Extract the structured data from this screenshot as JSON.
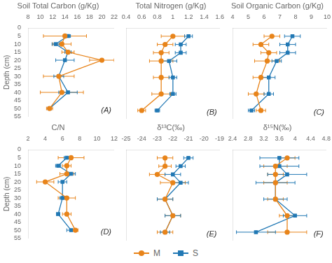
{
  "chart_data": [
    {
      "type": "line",
      "title": "Soil Total Carbon (g/Kg)",
      "ylabel": "Depth (cm)",
      "annotations": [
        "(A)"
      ],
      "y": [
        5,
        10,
        15,
        20,
        30,
        40,
        50
      ],
      "series": [
        {
          "name": "M",
          "color": "#E8841A",
          "marker": "o",
          "x": [
            14.0,
            13.5,
            14.5,
            20.0,
            13.0,
            13.5,
            11.5
          ],
          "xerr": [
            3.5,
            1.5,
            1.0,
            2.0,
            2.5,
            3.5,
            0.5
          ]
        },
        {
          "name": "S",
          "color": "#2178B4",
          "marker": "s",
          "x": [
            14.5,
            12.5,
            14.5,
            14.0,
            13.0,
            14.5,
            11.5
          ],
          "xerr": [
            0.4,
            0.6,
            0.5,
            1.5,
            0.8,
            1.5,
            0.3
          ]
        }
      ],
      "xlim": [
        8,
        22
      ],
      "xticks": [
        8,
        10,
        12,
        14,
        16,
        18,
        20,
        22
      ],
      "ylim": [
        55,
        0
      ],
      "yticks": [
        0,
        5,
        10,
        15,
        20,
        25,
        30,
        35,
        40,
        45,
        50,
        55
      ],
      "grid": false,
      "legend": "bottom"
    },
    {
      "type": "line",
      "title": "Total Nitrogen (g/Kg)",
      "annotations": [
        "(B)"
      ],
      "y": [
        5,
        10,
        15,
        20,
        30,
        40,
        50
      ],
      "series": [
        {
          "name": "M",
          "color": "#E8841A",
          "marker": "o",
          "x": [
            1.0,
            0.9,
            0.85,
            0.85,
            0.85,
            0.85,
            0.6
          ],
          "xerr": [
            0.15,
            0.1,
            0.1,
            0.15,
            0.1,
            0.12,
            0.05
          ]
        },
        {
          "name": "S",
          "color": "#2178B4",
          "marker": "s",
          "x": [
            1.2,
            1.1,
            1.1,
            0.95,
            1.0,
            1.0,
            0.8
          ],
          "xerr": [
            0.05,
            0.07,
            0.07,
            0.1,
            0.05,
            0.04,
            0.03
          ]
        }
      ],
      "xlim": [
        0.4,
        1.6
      ],
      "xticks": [
        0.4,
        0.6,
        0.8,
        1,
        1.2,
        1.4,
        1.6
      ],
      "ylim": [
        55,
        0
      ],
      "yticks": [
        0,
        5,
        10,
        15,
        20,
        25,
        30,
        35,
        40,
        45,
        50,
        55
      ],
      "tick_labels": "x",
      "grid": false,
      "legend": "bottom"
    },
    {
      "type": "line",
      "title": "Soil Organic Carbon (g/Kg)",
      "annotations": [
        "(C)"
      ],
      "y": [
        5,
        10,
        15,
        20,
        30,
        40,
        50
      ],
      "series": [
        {
          "name": "M",
          "color": "#E8841A",
          "marker": "o",
          "x": [
            6.5,
            5.8,
            6.3,
            6.2,
            5.8,
            5.5,
            5.8
          ],
          "xerr": [
            0.5,
            0.5,
            0.5,
            0.8,
            0.5,
            0.5,
            0.3
          ]
        },
        {
          "name": "S",
          "color": "#2178B4",
          "marker": "s",
          "x": [
            7.8,
            7.5,
            7.5,
            6.8,
            6.3,
            6.3,
            5.2
          ],
          "xerr": [
            0.5,
            0.5,
            0.5,
            0.3,
            0.4,
            0.3,
            0.2
          ]
        }
      ],
      "xlim": [
        4,
        10
      ],
      "xticks": [
        4,
        5,
        6,
        7,
        8,
        9,
        10
      ],
      "ylim": [
        55,
        0
      ],
      "yticks": [
        0,
        5,
        10,
        15,
        20,
        25,
        30,
        35,
        40,
        45,
        50,
        55
      ],
      "tick_labels": "x",
      "grid": false,
      "legend": "bottom"
    },
    {
      "type": "line",
      "title": "C/N",
      "ylabel": "Depth (cm)",
      "annotations": [
        "(D)"
      ],
      "y": [
        5,
        10,
        15,
        20,
        30,
        40,
        50
      ],
      "series": [
        {
          "name": "M",
          "color": "#E8841A",
          "marker": "o",
          "x": [
            7.0,
            6.5,
            6.5,
            4.0,
            6.5,
            6.5,
            7.5
          ],
          "xerr": [
            1.5,
            0.5,
            0.8,
            1.0,
            1.0,
            0.5,
            0.3
          ]
        },
        {
          "name": "S",
          "color": "#2178B4",
          "marker": "s",
          "x": [
            6.5,
            5.5,
            7.0,
            6.0,
            6.0,
            5.5,
            7.0
          ],
          "xerr": [
            0.3,
            0.3,
            0.5,
            0.5,
            0.3,
            0.2,
            0.5
          ]
        }
      ],
      "xlim": [
        2,
        12
      ],
      "xticks": [
        2,
        4,
        6,
        8,
        10,
        12
      ],
      "ylim": [
        55,
        0
      ],
      "yticks": [
        0,
        5,
        10,
        15,
        20,
        25,
        30,
        35,
        40,
        45,
        50,
        55
      ],
      "grid": false,
      "legend": "bottom"
    },
    {
      "type": "line",
      "title": "δ¹³C(‰)",
      "annotations": [
        "(E)"
      ],
      "y": [
        5,
        10,
        15,
        20,
        30,
        40,
        50
      ],
      "series": [
        {
          "name": "M",
          "color": "#E8841A",
          "marker": "o",
          "x": [
            -22.5,
            -22.5,
            -23.0,
            -22.0,
            -22.5,
            -22.0,
            -22.5
          ],
          "xerr": [
            0.5,
            0.4,
            0.5,
            0.8,
            0.5,
            0.5,
            0.5
          ]
        },
        {
          "name": "S",
          "color": "#2178B4",
          "marker": "s",
          "x": [
            -21.0,
            -21.5,
            -22.0,
            -21.5,
            -22.5,
            -22.0,
            -22.5
          ],
          "xerr": [
            0.3,
            0.3,
            0.5,
            0.5,
            0.5,
            0.5,
            0.3
          ]
        }
      ],
      "xlim": [
        -25,
        -19
      ],
      "xticks": [
        -25,
        -24,
        -23,
        -22,
        -21,
        -20,
        -19
      ],
      "ylim": [
        55,
        0
      ],
      "yticks": [
        0,
        5,
        10,
        15,
        20,
        25,
        30,
        35,
        40,
        45,
        50,
        55
      ],
      "tick_labels": "x",
      "grid": false,
      "legend": "bottom"
    },
    {
      "type": "line",
      "title": "δ¹⁵N(‰)",
      "annotations": [
        "(F)"
      ],
      "y": [
        5,
        10,
        15,
        20,
        30,
        40,
        50
      ],
      "series": [
        {
          "name": "M",
          "color": "#E8841A",
          "marker": "o",
          "x": [
            3.8,
            3.5,
            3.5,
            3.5,
            3.5,
            3.8,
            3.8
          ],
          "xerr": [
            0.2,
            0.3,
            0.2,
            0.3,
            0.2,
            0.2,
            0.5
          ]
        },
        {
          "name": "S",
          "color": "#2178B4",
          "marker": "s",
          "x": [
            3.6,
            3.6,
            3.8,
            3.5,
            3.5,
            4.0,
            3.0
          ],
          "xerr": [
            0.5,
            0.5,
            0.5,
            0.5,
            0.3,
            0.3,
            0.5
          ]
        }
      ],
      "xlim": [
        2.4,
        4.8
      ],
      "xticks": [
        2.4,
        2.8,
        3.2,
        3.6,
        4,
        4.4,
        4.8
      ],
      "ylim": [
        55,
        0
      ],
      "yticks": [
        0,
        5,
        10,
        15,
        20,
        25,
        30,
        35,
        40,
        45,
        50,
        55
      ],
      "tick_labels": "x",
      "grid": false,
      "legend": "bottom"
    }
  ]
}
